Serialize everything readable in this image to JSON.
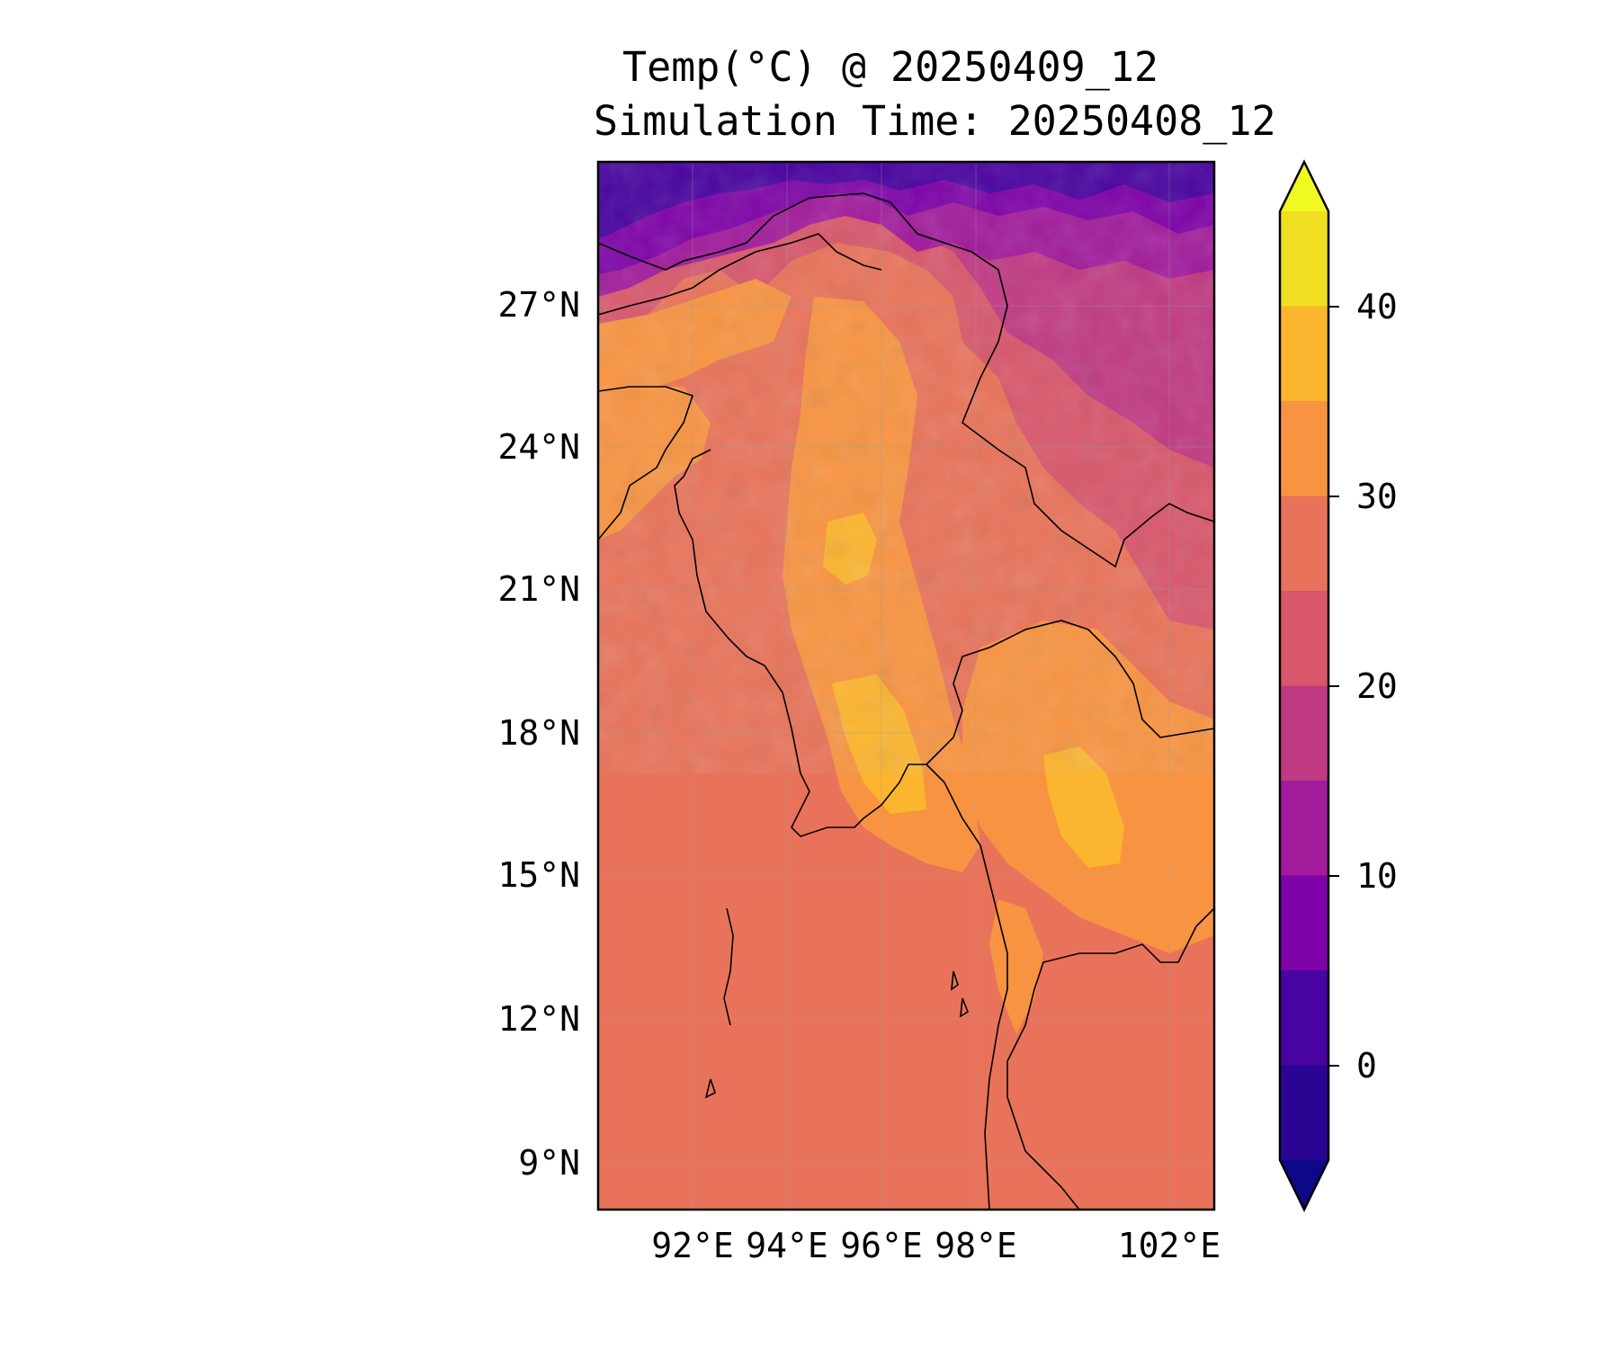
{
  "title_line1": "Temp(°C) @ 20250409_12",
  "title_line2": "Simulation Time: 20250408_12",
  "lat_ticks": [
    "27°N",
    "24°N",
    "21°N",
    "18°N",
    "15°N",
    "12°N",
    "9°N"
  ],
  "lon_ticks": [
    "92°E",
    "94°E",
    "96°E",
    "98°E",
    "102°E"
  ],
  "colorbar": {
    "tick_labels": [
      "40",
      "30",
      "20",
      "10",
      "0"
    ],
    "levels": [
      -5,
      0,
      5,
      10,
      15,
      20,
      25,
      30,
      35,
      40,
      45
    ],
    "extend": "both"
  },
  "colors": {
    "ocean": "#E9735A",
    "under": "#0D0887",
    "bands": [
      "#2A0593",
      "#4903A0",
      "#7E03A8",
      "#A11B9B",
      "#C03A83",
      "#D8576B",
      "#E9735A",
      "#F89441",
      "#FCB52E",
      "#F0DF20"
    ],
    "over": "#F0F921"
  }
}
